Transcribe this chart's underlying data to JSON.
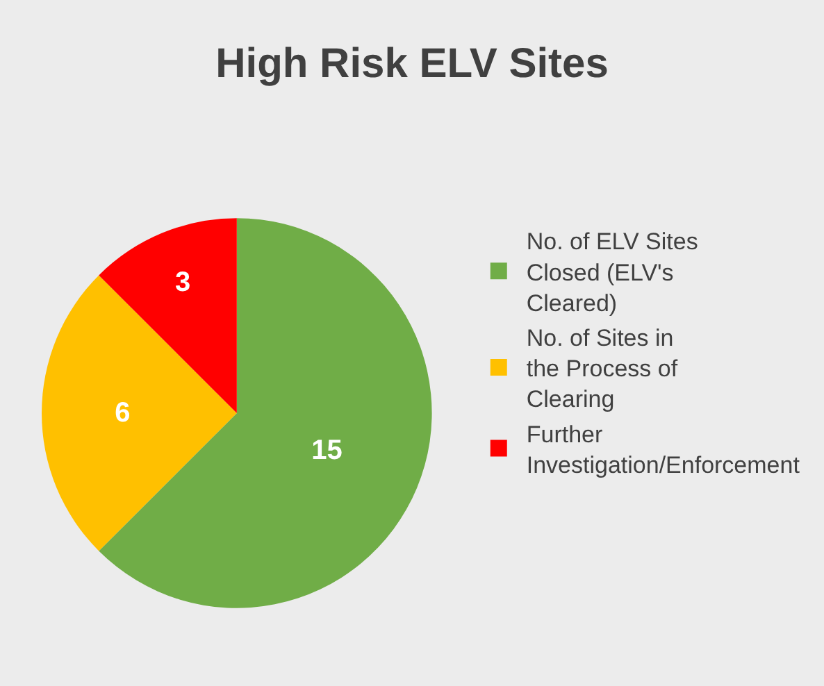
{
  "chart_data": {
    "type": "pie",
    "title": "High Risk ELV Sites",
    "categories": [
      "No. of ELV Sites Closed (ELV's Cleared)",
      "No. of Sites in the Process of Clearing",
      "Further Investigation/Enforcement"
    ],
    "values": [
      15,
      6,
      3
    ],
    "colors": [
      "#70ad47",
      "#ffc000",
      "#ff0000"
    ],
    "data_labels": true,
    "legend": "right"
  }
}
